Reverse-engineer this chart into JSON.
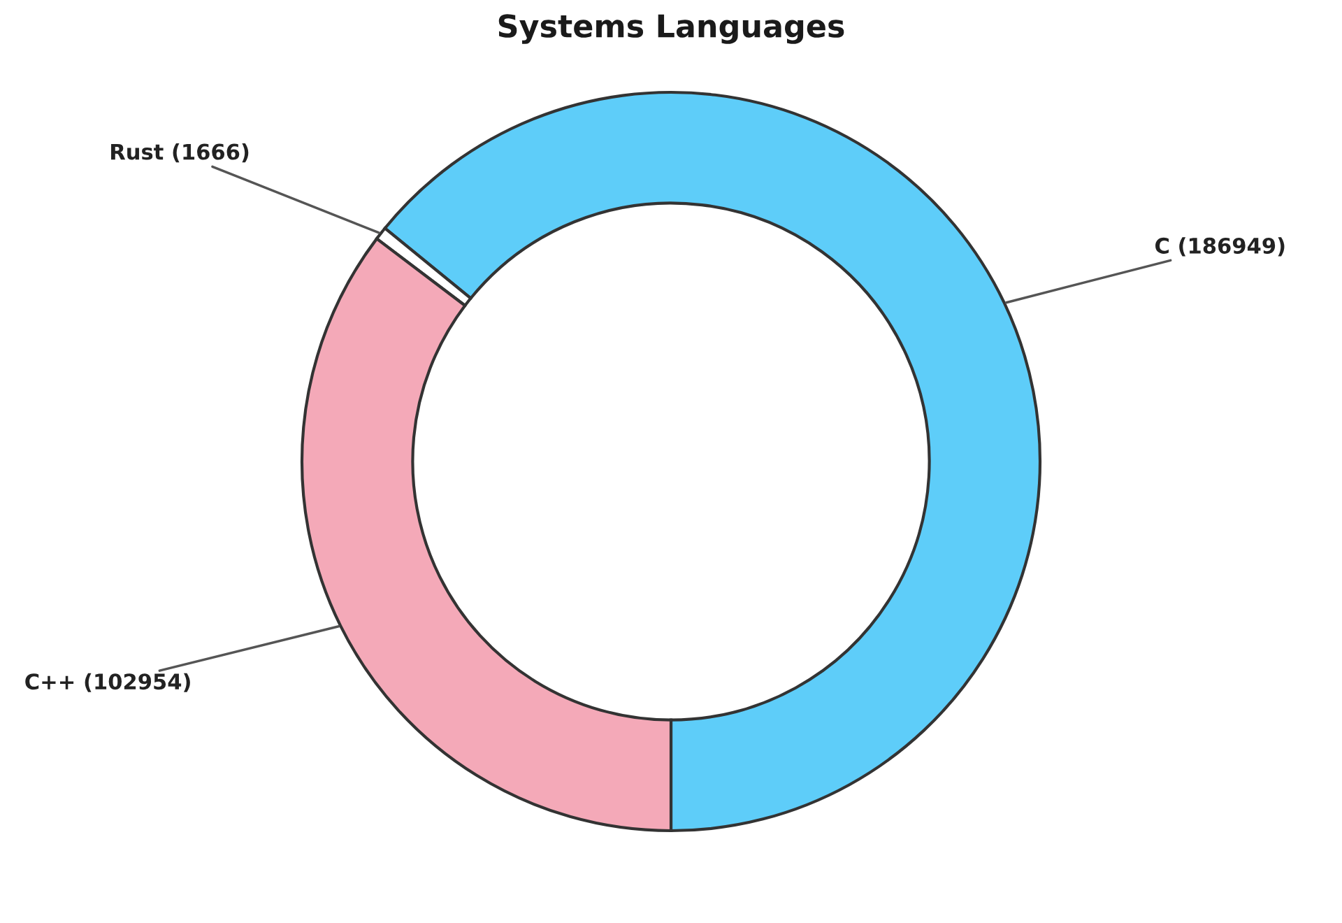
{
  "chart_data": {
    "type": "donut",
    "title": "Systems Languages",
    "categories": [
      "C",
      "Rust",
      "C++"
    ],
    "values": [
      186949,
      1666,
      102954
    ],
    "value_labels": [
      "(186949)",
      "(1666)",
      "(102954)"
    ],
    "colors": [
      "#5ecdf9",
      "#ffffff",
      "#f4a9b8"
    ]
  }
}
